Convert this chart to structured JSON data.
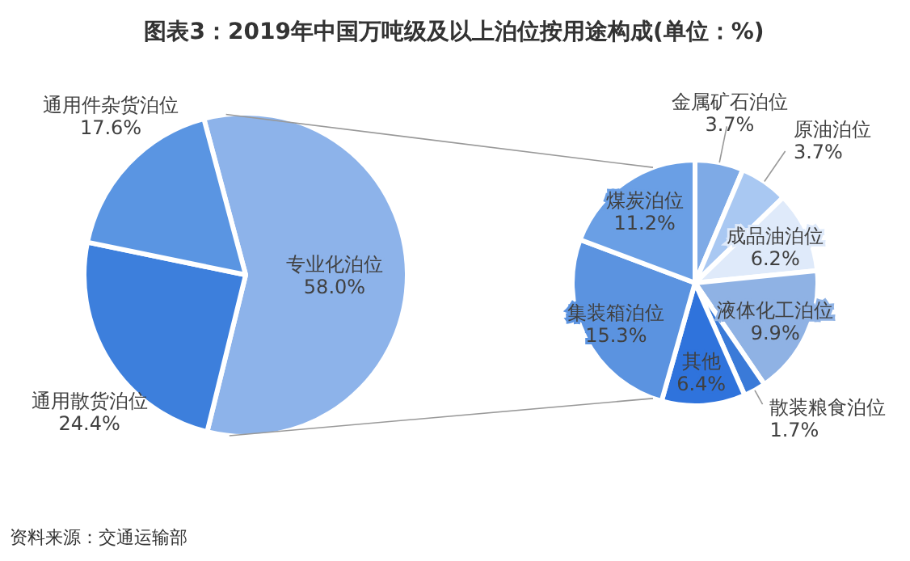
{
  "chart_data": [
    {
      "type": "pie",
      "title": "图表3：2019年中国万吨级及以上泊位按用途构成(单位：%)",
      "annotations": [
        "资料来源：交通运输部"
      ],
      "categories": [
        "专业化泊位",
        "通用散货泊位",
        "通用件杂货泊位"
      ],
      "values": [
        58.0,
        24.4,
        17.6
      ],
      "colors": [
        "#8db3ea",
        "#3d7fdc",
        "#5a95e2"
      ],
      "value_labels": [
        "58.0%",
        "24.4%",
        "17.6%"
      ]
    },
    {
      "type": "pie",
      "categories": [
        "金属矿石泊位",
        "原油泊位",
        "成品油泊位",
        "液体化工泊位",
        "散装粮食泊位",
        "其他",
        "集装箱泊位",
        "煤炭泊位"
      ],
      "values": [
        3.7,
        3.7,
        6.2,
        9.9,
        1.7,
        6.4,
        15.3,
        11.2
      ],
      "colors": [
        "#7eaae6",
        "#a9c8f2",
        "#dfeafa",
        "#8fb2e4",
        "#3a7ad8",
        "#2f73dc",
        "#5b93e0",
        "#6a9fe5"
      ],
      "value_labels": [
        "3.7%",
        "3.7%",
        "6.2%",
        "9.9%",
        "1.7%",
        "6.4%",
        "15.3%",
        "11.2%"
      ]
    }
  ]
}
